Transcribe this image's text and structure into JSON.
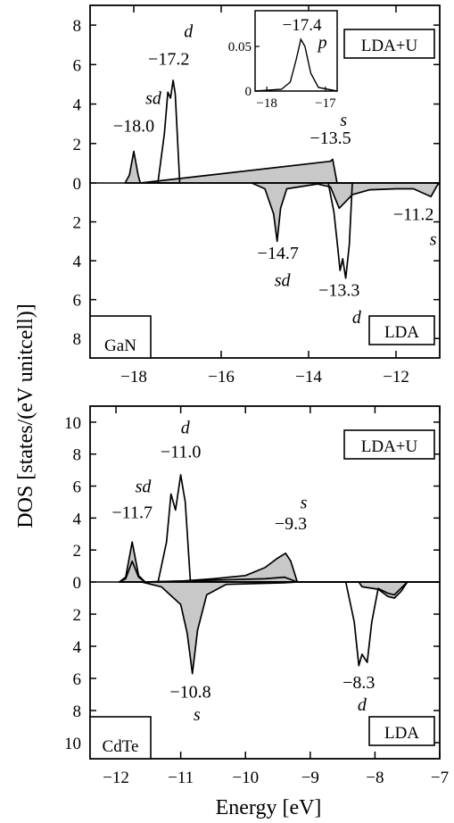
{
  "figure": {
    "ylabel": "DOS [states/(eV unitcell)]",
    "xlabel": "Energy [eV]"
  },
  "chart_data": [
    {
      "type": "area",
      "material": "GaN",
      "xlim": [
        -19,
        -11
      ],
      "ylim_up": [
        0,
        9
      ],
      "ylim_down": [
        0,
        9
      ],
      "x_ticks": [
        -18,
        -16,
        -14,
        -12
      ],
      "y_ticks": [
        0,
        2,
        4,
        6,
        8
      ],
      "upper_label": "LDA+U",
      "lower_label": "LDA",
      "series": [
        {
          "name": "LDA+U",
          "direction": "up",
          "fill": "#c8c8c8",
          "points": [
            [
              -18.2,
              0
            ],
            [
              -18.1,
              0.4
            ],
            [
              -18.0,
              1.6
            ],
            [
              -17.9,
              0.4
            ],
            [
              -17.85,
              0
            ],
            [
              -13.5,
              1.1
            ],
            [
              -13.45,
              1.2
            ],
            [
              -13.35,
              0
            ],
            [
              -11,
              0
            ]
          ]
        },
        {
          "name": "LDA+U",
          "direction": "up",
          "fill": "none",
          "points": [
            [
              -17.45,
              0
            ],
            [
              -17.3,
              2.5
            ],
            [
              -17.22,
              4.6
            ],
            [
              -17.16,
              4.3
            ],
            [
              -17.1,
              5.2
            ],
            [
              -17.05,
              4.5
            ],
            [
              -16.95,
              0
            ]
          ]
        },
        {
          "name": "LDA",
          "direction": "down",
          "fill": "#c8c8c8",
          "points": [
            [
              -15.3,
              0
            ],
            [
              -15.0,
              0.3
            ],
            [
              -14.8,
              1.6
            ],
            [
              -14.72,
              3.0
            ],
            [
              -14.64,
              1.3
            ],
            [
              -14.5,
              0.3
            ],
            [
              -13.8,
              0.05
            ],
            [
              -13.5,
              0.2
            ],
            [
              -13.3,
              1.3
            ],
            [
              -13.0,
              0.6
            ],
            [
              -12.6,
              0.35
            ],
            [
              -12.0,
              0.3
            ],
            [
              -11.6,
              0.3
            ],
            [
              -11.3,
              0.6
            ],
            [
              -11.2,
              0.7
            ],
            [
              -11.05,
              0.1
            ],
            [
              -11,
              0
            ]
          ]
        },
        {
          "name": "LDA",
          "direction": "down",
          "fill": "none",
          "points": [
            [
              -13.55,
              0
            ],
            [
              -13.42,
              1.5
            ],
            [
              -13.35,
              3.0
            ],
            [
              -13.28,
              4.5
            ],
            [
              -13.22,
              3.9
            ],
            [
              -13.15,
              4.9
            ],
            [
              -13.07,
              3.2
            ],
            [
              -13.0,
              0
            ]
          ]
        }
      ],
      "peak_labels": [
        {
          "x": -18.0,
          "y": 2.6,
          "text": "−18.0",
          "style": "normal"
        },
        {
          "x": -17.55,
          "y": 4.0,
          "text": "sd",
          "style": "italic"
        },
        {
          "x": -17.2,
          "y": 6.0,
          "text": "−17.2",
          "style": "normal"
        },
        {
          "x": -16.75,
          "y": 7.4,
          "text": "d",
          "style": "italic"
        },
        {
          "x": -13.5,
          "y": 2.0,
          "text": "−13.5",
          "style": "normal"
        },
        {
          "x": -13.2,
          "y": 2.9,
          "text": "s",
          "style": "italic"
        },
        {
          "x": -14.7,
          "y": -3.9,
          "text": "−14.7",
          "style": "normal"
        },
        {
          "x": -14.6,
          "y": -5.3,
          "text": "sd",
          "style": "italic"
        },
        {
          "x": -13.3,
          "y": -5.8,
          "text": "−13.3",
          "style": "normal"
        },
        {
          "x": -12.9,
          "y": -7.2,
          "text": "d",
          "style": "italic"
        },
        {
          "x": -11.6,
          "y": -1.9,
          "text": "−11.2",
          "style": "normal"
        },
        {
          "x": -11.15,
          "y": -3.2,
          "text": "s",
          "style": "italic"
        }
      ],
      "inset": {
        "xlim": [
          -18.2,
          -16.8
        ],
        "ylim": [
          0,
          0.09
        ],
        "x_ticks": [
          -18,
          -17
        ],
        "y_ticks": [
          0,
          0.05
        ],
        "label": "−17.4",
        "orbital": "p",
        "points": [
          [
            -18.2,
            0
          ],
          [
            -17.75,
            0.002
          ],
          [
            -17.6,
            0.01
          ],
          [
            -17.5,
            0.035
          ],
          [
            -17.42,
            0.058
          ],
          [
            -17.35,
            0.05
          ],
          [
            -17.25,
            0.02
          ],
          [
            -17.12,
            0.004
          ],
          [
            -16.8,
            0
          ]
        ]
      }
    },
    {
      "type": "area",
      "material": "CdTe",
      "xlim": [
        -12.4,
        -7
      ],
      "ylim_up": [
        0,
        11
      ],
      "ylim_down": [
        0,
        11
      ],
      "x_ticks": [
        -12,
        -11,
        -10,
        -9,
        -8,
        -7
      ],
      "y_ticks": [
        0,
        2,
        4,
        6,
        8,
        10
      ],
      "upper_label": "LDA+U",
      "lower_label": "LDA",
      "series": [
        {
          "name": "LDA+U",
          "direction": "up",
          "fill": "#c8c8c8",
          "points": [
            [
              -11.95,
              0
            ],
            [
              -11.85,
              0.3
            ],
            [
              -11.75,
              2.5
            ],
            [
              -11.65,
              0.4
            ],
            [
              -11.55,
              0
            ],
            [
              -11.0,
              0.05
            ],
            [
              -10.5,
              0.2
            ],
            [
              -10.0,
              0.4
            ],
            [
              -9.7,
              0.9
            ],
            [
              -9.5,
              1.5
            ],
            [
              -9.38,
              1.8
            ],
            [
              -9.3,
              1.3
            ],
            [
              -9.2,
              0
            ],
            [
              -7,
              0
            ]
          ]
        },
        {
          "name": "LDA",
          "direction": "up",
          "fill": "none",
          "points": [
            [
              -11.95,
              0
            ],
            [
              -11.85,
              0.2
            ],
            [
              -11.75,
              1.3
            ],
            [
              -11.65,
              0.3
            ],
            [
              -11.55,
              0
            ],
            [
              -9.7,
              0.2
            ],
            [
              -9.4,
              0.3
            ],
            [
              -9.2,
              0
            ],
            [
              -7,
              0
            ]
          ]
        },
        {
          "name": "LDA+U",
          "direction": "up",
          "fill": "none",
          "points": [
            [
              -11.35,
              0
            ],
            [
              -11.22,
              2.5
            ],
            [
              -11.15,
              5.5
            ],
            [
              -11.08,
              4.5
            ],
            [
              -11.0,
              6.7
            ],
            [
              -10.93,
              5.0
            ],
            [
              -10.85,
              0
            ]
          ]
        },
        {
          "name": "LDA",
          "direction": "down",
          "fill": "#c8c8c8",
          "points": [
            [
              -11.6,
              0
            ],
            [
              -11.3,
              0.3
            ],
            [
              -11.0,
              1.4
            ],
            [
              -10.9,
              3.2
            ],
            [
              -10.82,
              5.7
            ],
            [
              -10.74,
              3.0
            ],
            [
              -10.6,
              0.8
            ],
            [
              -10.3,
              0.15
            ],
            [
              -9.4,
              0.05
            ],
            [
              -9.2,
              0
            ],
            [
              -8.25,
              0
            ],
            [
              -8.2,
              0.3
            ],
            [
              -7.95,
              0.45
            ],
            [
              -7.8,
              0.9
            ],
            [
              -7.7,
              1.0
            ],
            [
              -7.6,
              0.6
            ],
            [
              -7.5,
              0
            ]
          ]
        },
        {
          "name": "LDA",
          "direction": "down",
          "fill": "none",
          "points": [
            [
              -8.45,
              0
            ],
            [
              -8.32,
              2.5
            ],
            [
              -8.25,
              5.2
            ],
            [
              -8.2,
              4.5
            ],
            [
              -8.12,
              5.0
            ],
            [
              -8.05,
              2.5
            ],
            [
              -7.95,
              0.4
            ],
            [
              -7.8,
              0.7
            ],
            [
              -7.7,
              0.8
            ],
            [
              -7.6,
              0.4
            ],
            [
              -7.5,
              0
            ]
          ]
        }
      ],
      "peak_labels": [
        {
          "x": -11.75,
          "y": 4.0,
          "text": "−11.7",
          "style": "normal"
        },
        {
          "x": -11.58,
          "y": 5.6,
          "text": "sd",
          "style": "italic"
        },
        {
          "x": -11.0,
          "y": 7.8,
          "text": "−11.0",
          "style": "normal"
        },
        {
          "x": -10.93,
          "y": 9.3,
          "text": "d",
          "style": "italic"
        },
        {
          "x": -9.3,
          "y": 3.3,
          "text": "−9.3",
          "style": "normal"
        },
        {
          "x": -9.1,
          "y": 4.6,
          "text": "s",
          "style": "italic"
        },
        {
          "x": -10.85,
          "y": -7.2,
          "text": "−10.8",
          "style": "normal"
        },
        {
          "x": -10.75,
          "y": -8.6,
          "text": "s",
          "style": "italic"
        },
        {
          "x": -8.25,
          "y": -6.6,
          "text": "−8.3",
          "style": "normal"
        },
        {
          "x": -8.2,
          "y": -8.0,
          "text": "d",
          "style": "italic"
        }
      ]
    }
  ]
}
